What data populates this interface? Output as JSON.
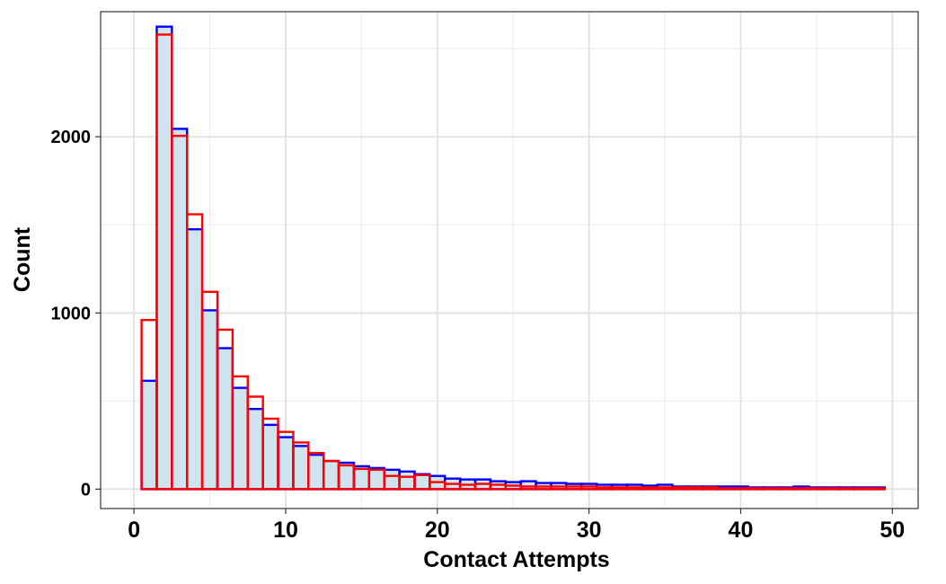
{
  "chart_data": {
    "type": "bar",
    "subtype": "overlaid-histogram",
    "xlabel": "Contact Attempts",
    "ylabel": "Count",
    "xlim": [
      -2.2,
      51.7
    ],
    "ylim": [
      -110,
      2710
    ],
    "x_ticks": [
      0,
      10,
      20,
      30,
      40,
      50
    ],
    "y_ticks": [
      0,
      1000,
      2000
    ],
    "grid": true,
    "bin_width": 1,
    "bin_centers": [
      1,
      2,
      3,
      4,
      5,
      6,
      7,
      8,
      9,
      10,
      11,
      12,
      13,
      14,
      15,
      16,
      17,
      18,
      19,
      20,
      21,
      22,
      23,
      24,
      25,
      26,
      27,
      28,
      29,
      30,
      31,
      32,
      33,
      34,
      35,
      36,
      37,
      38,
      39,
      40,
      41,
      42,
      43,
      44,
      45,
      46,
      47,
      48,
      49
    ],
    "series": [
      {
        "color": "#0000ff",
        "fill": "#cfe4ee",
        "values": [
          615,
          2625,
          2045,
          1475,
          1015,
          800,
          575,
          455,
          365,
          295,
          245,
          195,
          160,
          150,
          130,
          120,
          110,
          100,
          85,
          75,
          60,
          55,
          55,
          45,
          40,
          45,
          35,
          35,
          30,
          30,
          25,
          25,
          25,
          20,
          25,
          15,
          15,
          15,
          15,
          15,
          10,
          10,
          10,
          15,
          10,
          10,
          10,
          10,
          10
        ]
      },
      {
        "color": "#ff0000",
        "fill": "none",
        "values": [
          960,
          2580,
          2005,
          1560,
          1120,
          905,
          640,
          525,
          400,
          325,
          265,
          205,
          160,
          135,
          115,
          110,
          75,
          70,
          80,
          40,
          30,
          25,
          30,
          25,
          20,
          15,
          15,
          15,
          15,
          15,
          10,
          10,
          10,
          10,
          10,
          10,
          10,
          10,
          5,
          5,
          5,
          5,
          5,
          5,
          5,
          5,
          5,
          5,
          5
        ]
      }
    ]
  }
}
